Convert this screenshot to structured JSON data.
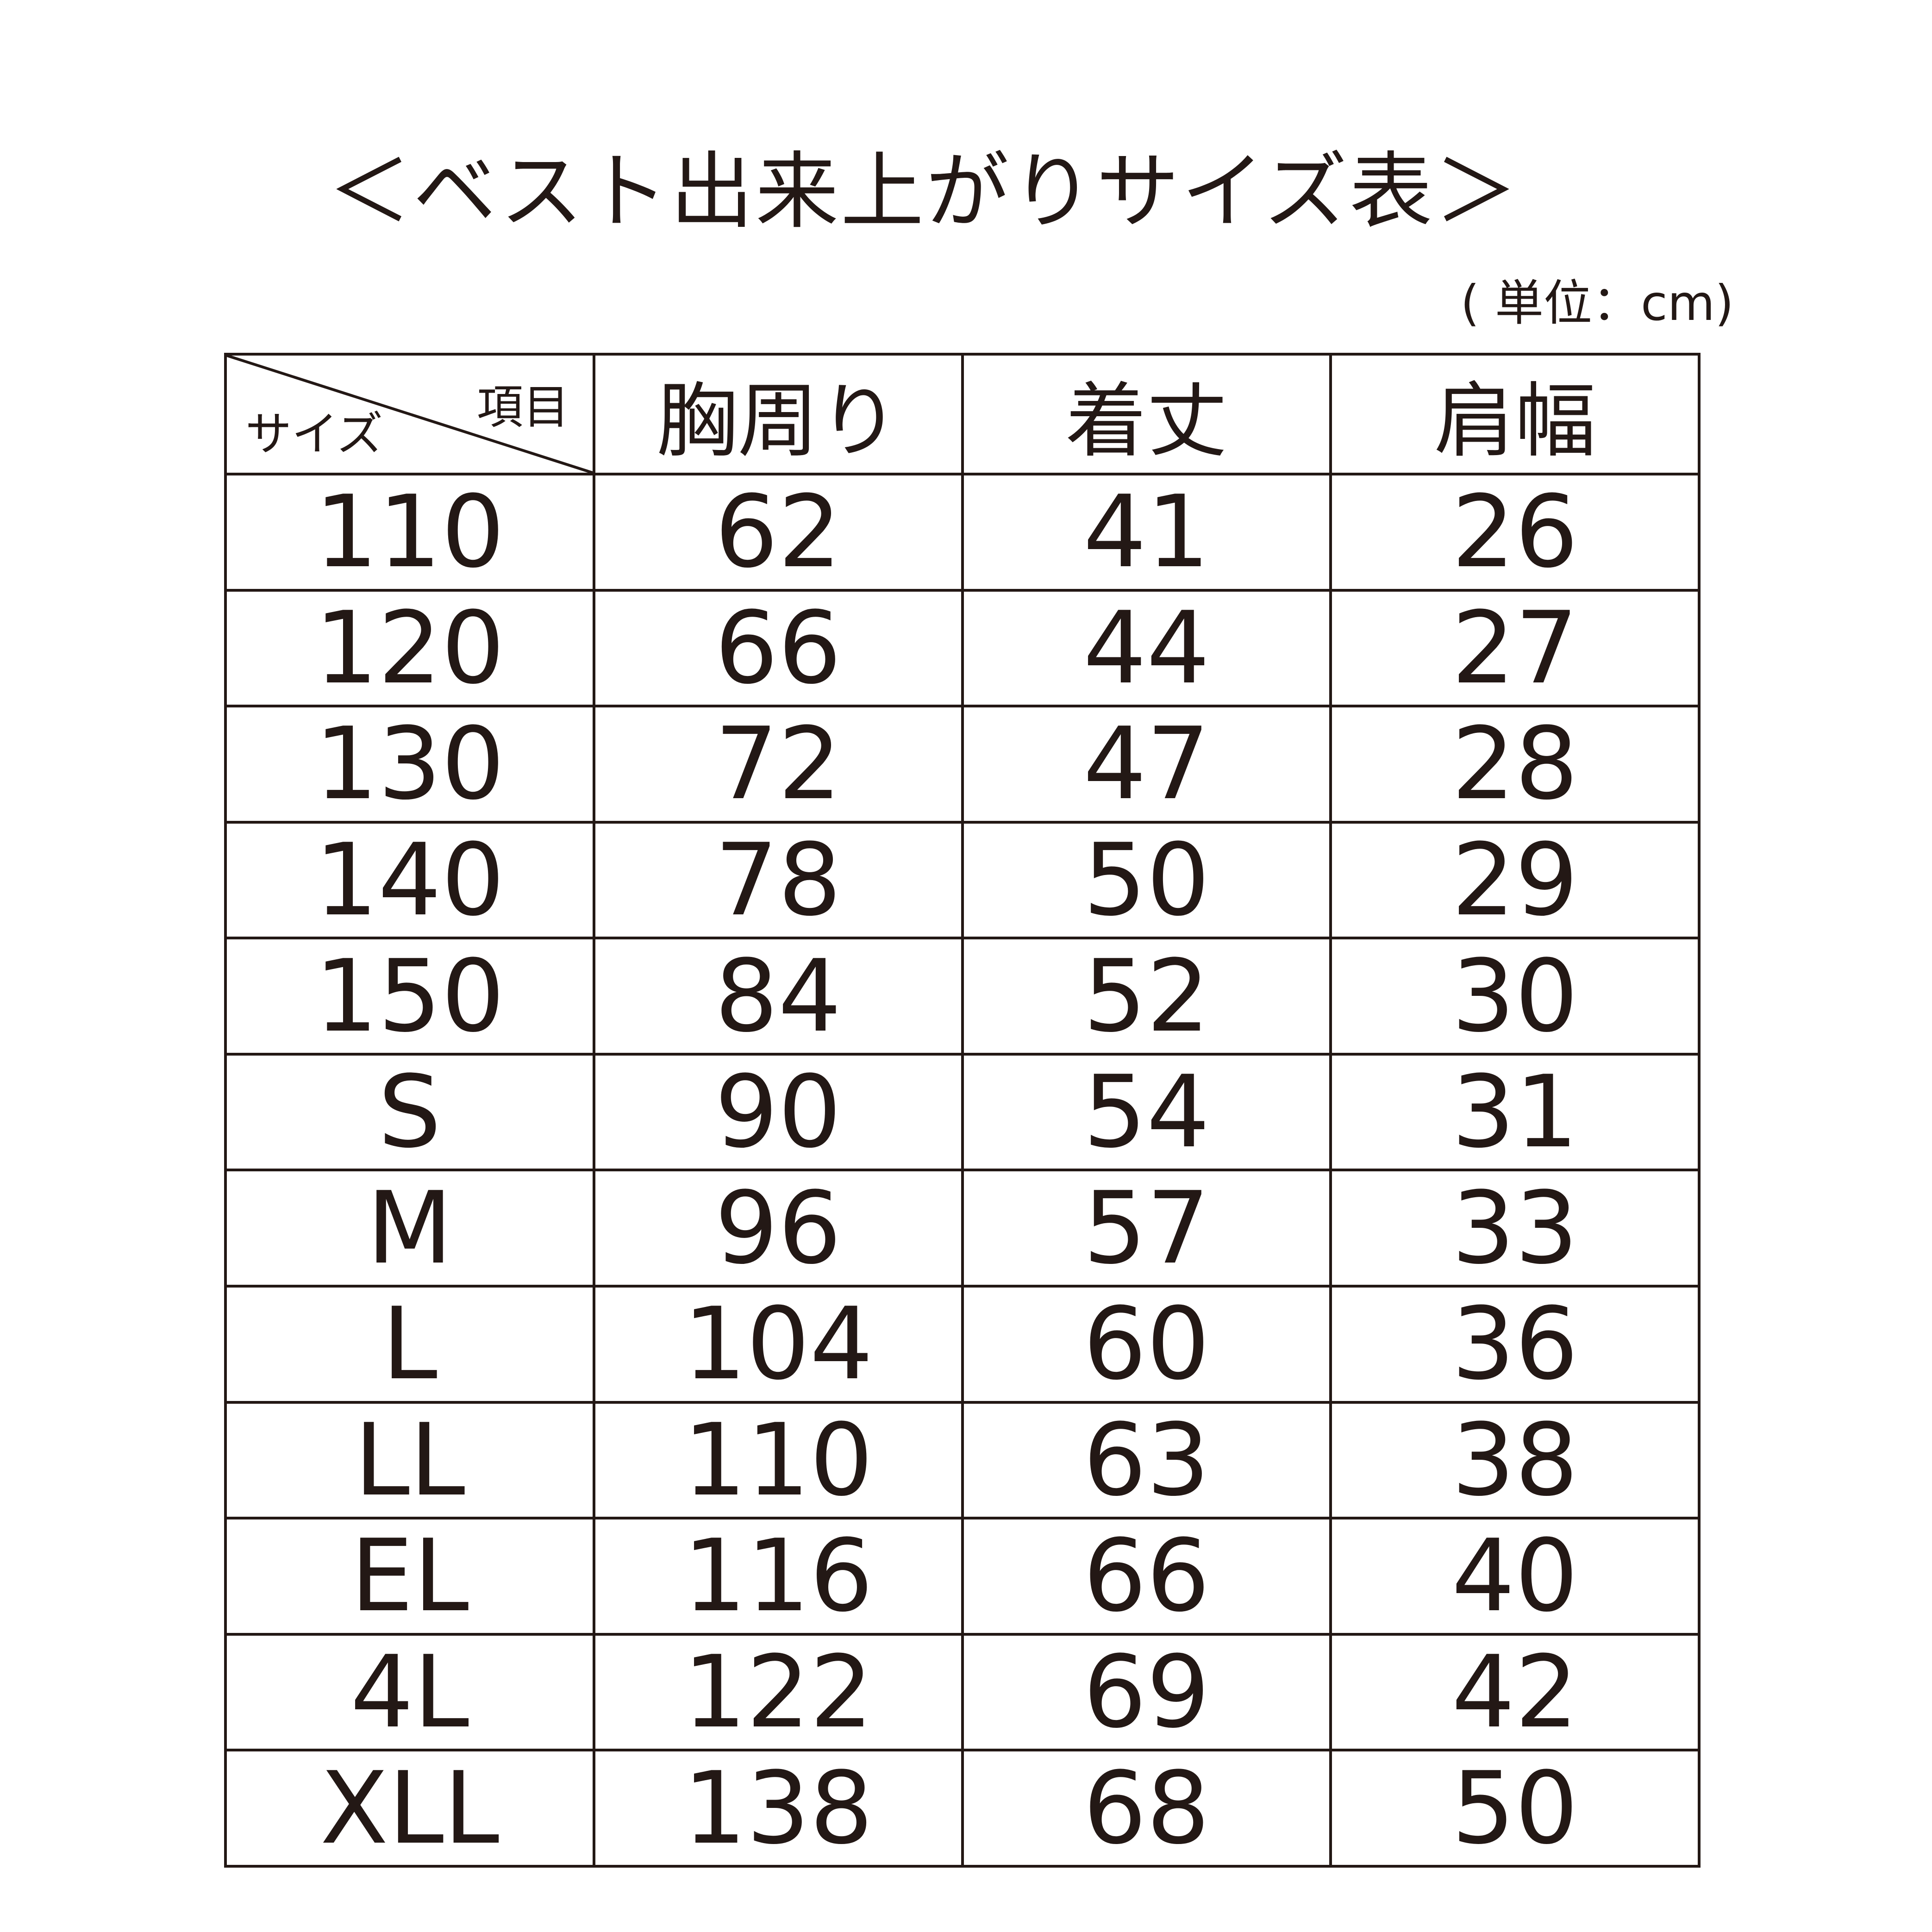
{
  "title": "＜ベスト出来上がりサイズ表＞",
  "unit": "( 単位：cm)",
  "table": {
    "corner_top": "項目",
    "corner_bottom": "サイズ",
    "columns": [
      "胸周り",
      "着丈",
      "肩幅"
    ],
    "rows": [
      [
        "110",
        "62",
        "41",
        "26"
      ],
      [
        "120",
        "66",
        "44",
        "27"
      ],
      [
        "130",
        "72",
        "47",
        "28"
      ],
      [
        "140",
        "78",
        "50",
        "29"
      ],
      [
        "150",
        "84",
        "52",
        "30"
      ],
      [
        "S",
        "90",
        "54",
        "31"
      ],
      [
        "M",
        "96",
        "57",
        "33"
      ],
      [
        "L",
        "104",
        "60",
        "36"
      ],
      [
        "LL",
        "110",
        "63",
        "38"
      ],
      [
        "EL",
        "116",
        "66",
        "40"
      ],
      [
        "4L",
        "122",
        "69",
        "42"
      ],
      [
        "XLL",
        "138",
        "68",
        "50"
      ]
    ]
  }
}
